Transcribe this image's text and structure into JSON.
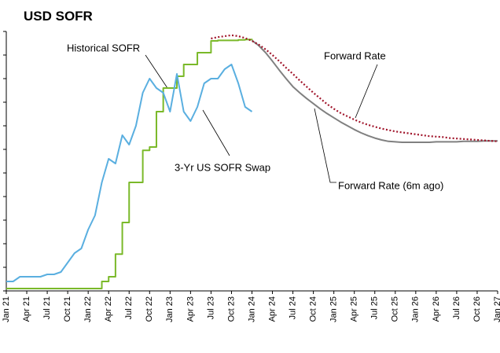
{
  "chart_data": {
    "type": "line",
    "title": "USD SOFR",
    "categories": [
      "Jan 21",
      null,
      null,
      "Apr 21",
      null,
      null,
      "Jul 21",
      null,
      null,
      "Oct 21",
      null,
      null,
      "Jan 22",
      null,
      null,
      "Apr 22",
      null,
      null,
      "Jul 22",
      null,
      null,
      "Oct 22",
      null,
      null,
      "Jan 23",
      null,
      null,
      "Apr 23",
      null,
      null,
      "Jul 23",
      null,
      null,
      "Oct 23",
      null,
      null,
      "Jan 24",
      null,
      null,
      "Apr 24",
      null,
      null,
      "Jul 24",
      null,
      null,
      "Oct 24",
      null,
      null,
      "Jan 25",
      null,
      null,
      "Apr 25",
      null,
      null,
      "Jul 25",
      null,
      null,
      "Oct 25",
      null,
      null,
      "Jan 26",
      null,
      null,
      "Apr 26",
      null,
      null,
      "Jul 26",
      null,
      null,
      "Oct 26",
      null,
      null,
      "Jan 27"
    ],
    "ylim": [
      0,
      5.5
    ],
    "yticks": [
      0,
      0.5,
      1,
      1.5,
      2,
      2.5,
      3,
      3.5,
      4,
      4.5,
      5,
      5.5
    ],
    "series": [
      {
        "name": "Historical SOFR",
        "color": "#7ab929",
        "step": true,
        "values": [
          0.05,
          0.05,
          0.05,
          0.05,
          0.05,
          0.05,
          0.05,
          0.05,
          0.05,
          0.05,
          0.05,
          0.05,
          0.05,
          0.05,
          0.2,
          0.3,
          0.78,
          1.45,
          2.3,
          2.3,
          2.98,
          3.05,
          3.8,
          4.3,
          4.3,
          4.55,
          4.8,
          4.8,
          5.05,
          5.05,
          5.3,
          5.31,
          5.31,
          5.31,
          5.32,
          5.33,
          5.31,
          null,
          null,
          null,
          null,
          null,
          null,
          null,
          null,
          null,
          null,
          null,
          null,
          null,
          null,
          null,
          null,
          null,
          null,
          null,
          null,
          null,
          null,
          null,
          null,
          null,
          null,
          null,
          null,
          null,
          null,
          null,
          null,
          null,
          null,
          null,
          null
        ]
      },
      {
        "name": "3-Yr US SOFR Swap",
        "color": "#5aafe0",
        "values": [
          0.2,
          0.2,
          0.3,
          0.3,
          0.3,
          0.3,
          0.35,
          0.35,
          0.4,
          0.6,
          0.8,
          0.9,
          1.3,
          1.6,
          2.3,
          2.8,
          2.7,
          3.3,
          3.1,
          3.5,
          4.2,
          4.5,
          4.3,
          4.2,
          3.8,
          4.6,
          3.8,
          3.6,
          3.9,
          4.4,
          4.5,
          4.5,
          4.7,
          4.8,
          4.4,
          3.9,
          3.8,
          null,
          null,
          null,
          null,
          null,
          null,
          null,
          null,
          null,
          null,
          null,
          null,
          null,
          null,
          null,
          null,
          null,
          null,
          null,
          null,
          null,
          null,
          null,
          null,
          null,
          null,
          null,
          null,
          null,
          null,
          null,
          null,
          null,
          null,
          null,
          null
        ]
      },
      {
        "name": "Forward Rate",
        "color": "#808080",
        "values": [
          null,
          null,
          null,
          null,
          null,
          null,
          null,
          null,
          null,
          null,
          null,
          null,
          null,
          null,
          null,
          null,
          null,
          null,
          null,
          null,
          null,
          null,
          null,
          null,
          null,
          null,
          null,
          null,
          null,
          null,
          null,
          null,
          null,
          null,
          null,
          null,
          5.31,
          5.2,
          5.05,
          4.87,
          4.68,
          4.5,
          4.33,
          4.2,
          4.08,
          3.97,
          3.86,
          3.76,
          3.67,
          3.58,
          3.5,
          3.42,
          3.35,
          3.29,
          3.24,
          3.2,
          3.17,
          3.16,
          3.15,
          3.15,
          3.15,
          3.15,
          3.15,
          3.16,
          3.16,
          3.16,
          3.16,
          3.17,
          3.17,
          3.17,
          3.18,
          3.18,
          3.18
        ]
      },
      {
        "name": "Forward Rate (6m ago)",
        "color": "#a0142a",
        "dotted": true,
        "values": [
          null,
          null,
          null,
          null,
          null,
          null,
          null,
          null,
          null,
          null,
          null,
          null,
          null,
          null,
          null,
          null,
          null,
          null,
          null,
          null,
          null,
          null,
          null,
          null,
          null,
          null,
          null,
          null,
          null,
          null,
          5.35,
          5.38,
          5.4,
          5.42,
          5.4,
          5.36,
          5.3,
          5.22,
          5.12,
          5.0,
          4.87,
          4.73,
          4.6,
          4.46,
          4.33,
          4.2,
          4.08,
          3.96,
          3.86,
          3.77,
          3.7,
          3.63,
          3.57,
          3.52,
          3.48,
          3.44,
          3.41,
          3.38,
          3.36,
          3.34,
          3.32,
          3.3,
          3.28,
          3.27,
          3.26,
          3.24,
          3.23,
          3.22,
          3.21,
          3.2,
          3.19,
          3.18,
          3.17
        ]
      }
    ]
  }
}
